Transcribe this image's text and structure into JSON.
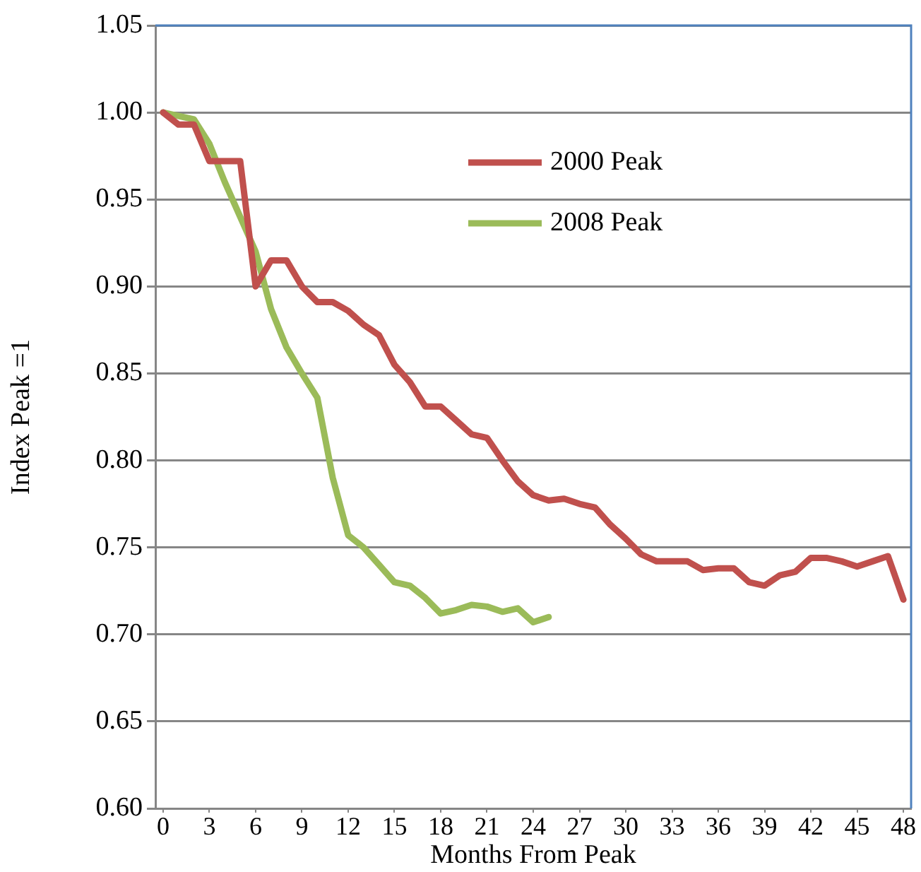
{
  "chart_data": {
    "type": "line",
    "xlabel": "Months From Peak",
    "ylabel": "Index Peak =1",
    "x": [
      0,
      1,
      2,
      3,
      4,
      5,
      6,
      7,
      8,
      9,
      10,
      11,
      12,
      13,
      14,
      15,
      16,
      17,
      18,
      19,
      20,
      21,
      22,
      23,
      24,
      25,
      26,
      27,
      28,
      29,
      30,
      31,
      32,
      33,
      34,
      35,
      36,
      37,
      38,
      39,
      40,
      41,
      42,
      43,
      44,
      45,
      46,
      47,
      48
    ],
    "xlim": [
      -0.5,
      48.5
    ],
    "xticks": [
      0,
      3,
      6,
      9,
      12,
      15,
      18,
      21,
      24,
      27,
      30,
      33,
      36,
      39,
      42,
      45,
      48
    ],
    "series": [
      {
        "name": "2000 Peak",
        "color": "#c0504d",
        "values": [
          1.0,
          0.993,
          0.993,
          0.972,
          0.972,
          0.972,
          0.9,
          0.915,
          0.915,
          0.9,
          0.891,
          0.891,
          0.886,
          0.878,
          0.872,
          0.855,
          0.845,
          0.831,
          0.831,
          0.823,
          0.815,
          0.813,
          0.8,
          0.788,
          0.78,
          0.777,
          0.778,
          0.775,
          0.773,
          0.763,
          0.755,
          0.746,
          0.742,
          0.742,
          0.742,
          0.737,
          0.738,
          0.738,
          0.73,
          0.728,
          0.734,
          0.736,
          0.744,
          0.744,
          0.742,
          0.739,
          0.742,
          0.745,
          0.72
        ]
      },
      {
        "name": "2008 Peak",
        "color": "#9bbb59",
        "values": [
          1.0,
          0.998,
          0.996,
          0.982,
          0.96,
          0.94,
          0.92,
          0.887,
          0.865,
          0.85,
          0.836,
          0.79,
          0.757,
          0.75,
          0.74,
          0.73,
          0.728,
          0.721,
          0.712,
          0.714,
          0.717,
          0.716,
          0.713,
          0.715,
          0.707,
          0.71,
          null,
          null,
          null,
          null,
          null,
          null,
          null,
          null,
          null,
          null,
          null,
          null,
          null,
          null,
          null,
          null,
          null,
          null,
          null,
          null,
          null,
          null,
          null
        ]
      }
    ],
    "ylim": [
      0.6,
      1.05
    ],
    "yticks": [
      {
        "value": 0.6,
        "label": "0.60"
      },
      {
        "value": 0.65,
        "label": "0.65"
      },
      {
        "value": 0.7,
        "label": "0.70"
      },
      {
        "value": 0.75,
        "label": "0.75"
      },
      {
        "value": 0.8,
        "label": "0.80"
      },
      {
        "value": 0.85,
        "label": "0.85"
      },
      {
        "value": 0.9,
        "label": "0.90"
      },
      {
        "value": 0.95,
        "label": "0.95"
      },
      {
        "value": 1.0,
        "label": "1.00"
      },
      {
        "value": 1.05,
        "label": "1.05"
      }
    ],
    "grid": "y",
    "legend": "top right",
    "marker": "none",
    "line_style": "solid"
  }
}
